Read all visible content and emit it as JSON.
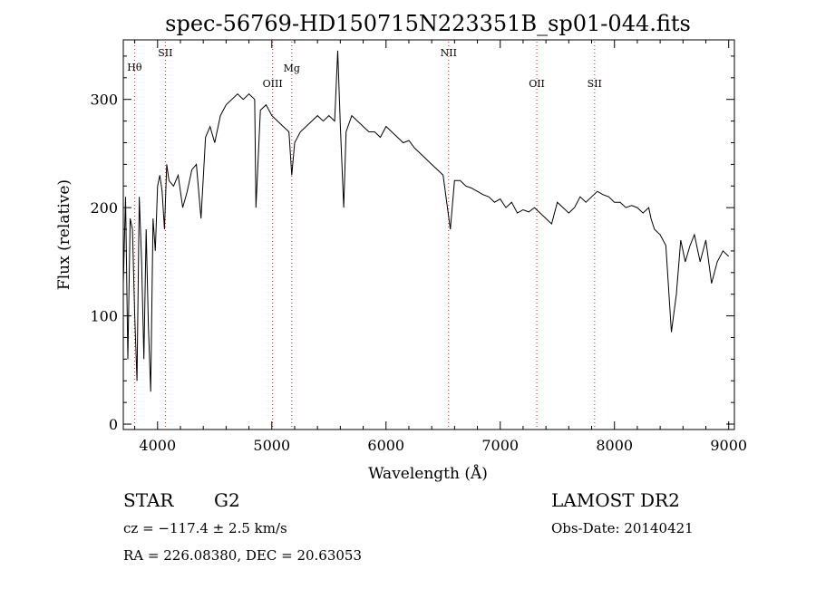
{
  "chart_data": {
    "type": "line",
    "title": "spec-56769-HD150715N223351B_sp01-044.fits",
    "xlabel": "Wavelength (Å)",
    "ylabel": "Flux (relative)",
    "xlim": [
      3700,
      9050
    ],
    "ylim": [
      -5,
      355
    ],
    "xticks": [
      4000,
      5000,
      6000,
      7000,
      8000,
      9000
    ],
    "yticks": [
      0,
      100,
      200,
      300
    ],
    "grid": false,
    "series": [
      {
        "x": [
          3700,
          3720,
          3740,
          3760,
          3780,
          3800,
          3820,
          3840,
          3860,
          3880,
          3900,
          3920,
          3940,
          3960,
          3980,
          4000,
          4020,
          4040,
          4060,
          4080,
          4100,
          4140,
          4180,
          4220,
          4260,
          4300,
          4340,
          4380,
          4420,
          4460,
          4500,
          4550,
          4600,
          4650,
          4700,
          4750,
          4800,
          4850,
          4861,
          4900,
          4950,
          5000,
          5050,
          5100,
          5150,
          5175,
          5200,
          5250,
          5300,
          5350,
          5400,
          5450,
          5500,
          5550,
          5577,
          5600,
          5630,
          5650,
          5700,
          5750,
          5800,
          5850,
          5900,
          5950,
          6000,
          6050,
          6100,
          6150,
          6200,
          6250,
          6300,
          6350,
          6400,
          6450,
          6500,
          6563,
          6600,
          6650,
          6700,
          6750,
          6800,
          6850,
          6900,
          6950,
          7000,
          7050,
          7100,
          7150,
          7200,
          7250,
          7300,
          7350,
          7400,
          7450,
          7500,
          7550,
          7600,
          7650,
          7700,
          7750,
          7800,
          7850,
          7900,
          7950,
          8000,
          8050,
          8100,
          8150,
          8200,
          8250,
          8300,
          8320,
          8350,
          8400,
          8450,
          8498,
          8542,
          8580,
          8620,
          8662,
          8700,
          8750,
          8800,
          8850,
          8900,
          8950,
          9000
        ],
        "y": [
          130,
          210,
          60,
          190,
          180,
          100,
          40,
          210,
          150,
          60,
          180,
          90,
          30,
          190,
          160,
          220,
          230,
          215,
          180,
          240,
          225,
          220,
          230,
          200,
          215,
          235,
          240,
          190,
          265,
          275,
          260,
          285,
          295,
          300,
          305,
          300,
          305,
          300,
          200,
          290,
          295,
          285,
          280,
          275,
          270,
          230,
          260,
          270,
          275,
          280,
          285,
          280,
          285,
          280,
          345,
          275,
          200,
          270,
          285,
          280,
          275,
          270,
          270,
          265,
          275,
          270,
          265,
          260,
          262,
          255,
          250,
          245,
          240,
          235,
          230,
          180,
          225,
          225,
          220,
          218,
          215,
          212,
          210,
          205,
          208,
          200,
          205,
          195,
          198,
          196,
          200,
          195,
          190,
          185,
          205,
          200,
          195,
          200,
          210,
          205,
          210,
          215,
          212,
          210,
          205,
          205,
          200,
          202,
          200,
          195,
          200,
          190,
          180,
          175,
          165,
          85,
          120,
          170,
          150,
          165,
          175,
          150,
          170,
          130,
          150,
          160,
          155
        ]
      }
    ],
    "lines": [
      {
        "label": "Hθ",
        "x": 3798,
        "color": "#cc2222"
      },
      {
        "label": "SII",
        "x": 4068,
        "color": "#cc2222"
      },
      {
        "label": "OIII",
        "x": 5007,
        "color": "#cc2222"
      },
      {
        "label": "Mg",
        "x": 5175,
        "color": "#cc2222"
      },
      {
        "label": "NII",
        "x": 6548,
        "color": "#cc2222"
      },
      {
        "label": "OII",
        "x": 7320,
        "color": "#cc2222"
      },
      {
        "label": "SII",
        "x": 7826,
        "color": "#cc2222"
      }
    ]
  },
  "info": {
    "class": "STAR",
    "subclass": "G2",
    "survey": "LAMOST DR2",
    "redshift": "cz = −117.4 ± 2.5 km/s",
    "obs_date": "Obs-Date: 20140421",
    "coords": "RA = 226.08380, DEC =  20.63053"
  }
}
